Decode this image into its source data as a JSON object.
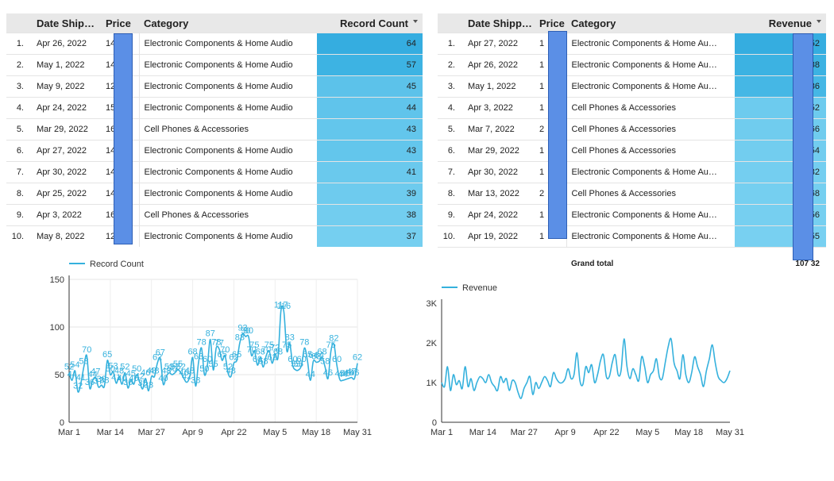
{
  "table1": {
    "headers": {
      "date": "Date Ship…",
      "price": "Price",
      "category": "Category",
      "metric": "Record Count"
    },
    "rows": [
      {
        "idx": "1.",
        "date": "Apr 26, 2022",
        "price": "14",
        "category": "Electronic Components & Home Audio",
        "value": "64"
      },
      {
        "idx": "2.",
        "date": "May 1, 2022",
        "price": "14",
        "category": "Electronic Components & Home Audio",
        "value": "57"
      },
      {
        "idx": "3.",
        "date": "May 9, 2022",
        "price": "12",
        "category": "Electronic Components & Home Audio",
        "value": "45"
      },
      {
        "idx": "4.",
        "date": "Apr 24, 2022",
        "price": "15",
        "category": "Electronic Components & Home Audio",
        "value": "44"
      },
      {
        "idx": "5.",
        "date": "Mar 29, 2022",
        "price": "16",
        "category": "Cell Phones & Accessories",
        "value": "43"
      },
      {
        "idx": "6.",
        "date": "Apr 27, 2022",
        "price": "14",
        "category": "Electronic Components & Home Audio",
        "value": "43"
      },
      {
        "idx": "7.",
        "date": "Apr 30, 2022",
        "price": "14",
        "category": "Electronic Components & Home Audio",
        "value": "41"
      },
      {
        "idx": "8.",
        "date": "Apr 25, 2022",
        "price": "14",
        "category": "Electronic Components & Home Audio",
        "value": "39"
      },
      {
        "idx": "9.",
        "date": "Apr 3, 2022",
        "price": "16",
        "category": "Cell Phones & Accessories",
        "value": "38"
      },
      {
        "idx": "10.",
        "date": "May 8, 2022",
        "price": "12",
        "category": "Electronic Components & Home Audio",
        "value": "37"
      }
    ],
    "bar_colors": [
      "#35ade0",
      "#3db3e3",
      "#5cc2ea",
      "#60c4eb",
      "#63c6ec",
      "#63c6ec",
      "#6ac9ed",
      "#6ecbee",
      "#72cdef",
      "#75cff0"
    ]
  },
  "table2": {
    "headers": {
      "date": "Date Shipp…",
      "price": "Price",
      "category": "Category",
      "metric": "Revenue"
    },
    "rows": [
      {
        "idx": "1.",
        "date": "Apr 27, 2022",
        "price": "1",
        "category": "Electronic Components & Home Au…",
        "value": "1 52"
      },
      {
        "idx": "2.",
        "date": "Apr 26, 2022",
        "price": "1",
        "category": "Electronic Components & Home Au…",
        "value": "1 38"
      },
      {
        "idx": "3.",
        "date": "May 1, 2022",
        "price": "1",
        "category": "Electronic Components & Home Au…",
        "value": "36"
      },
      {
        "idx": "4.",
        "date": "Apr 3, 2022",
        "price": "1",
        "category": "Cell Phones & Accessories",
        "value": "52"
      },
      {
        "idx": "5.",
        "date": "Mar 7, 2022",
        "price": "2",
        "category": "Cell Phones & Accessories",
        "value": "66"
      },
      {
        "idx": "6.",
        "date": "Mar 29, 2022",
        "price": "1",
        "category": "Cell Phones & Accessories",
        "value": "54"
      },
      {
        "idx": "7.",
        "date": "Apr 30, 2022",
        "price": "1",
        "category": "Electronic Components & Home Au…",
        "value": "32"
      },
      {
        "idx": "8.",
        "date": "Mar 13, 2022",
        "price": "2",
        "category": "Cell Phones & Accessories",
        "value": "68"
      },
      {
        "idx": "9.",
        "date": "Apr 24, 2022",
        "price": "1",
        "category": "Electronic Components & Home Au…",
        "value": "56"
      },
      {
        "idx": "10.",
        "date": "Apr 19, 2022",
        "price": "1",
        "category": "Electronic Components & Home Au…",
        "value": "55"
      }
    ],
    "bar_colors": [
      "#35ade0",
      "#3cb2e2",
      "#45b7e5",
      "#6dcbee",
      "#70ccee",
      "#72cdef",
      "#74cef0",
      "#75cff0",
      "#76cff0",
      "#78d0f1"
    ],
    "grand_total_label": "Grand total",
    "grand_total_value": "107 32"
  },
  "mask_color": "#5b8fe6",
  "chart_data": [
    {
      "type": "line",
      "series": [
        {
          "name": "Record Count",
          "color": "#35b1dd"
        }
      ],
      "legend": "top-left",
      "x_ticks": [
        "Mar 1",
        "Mar 14",
        "Mar 27",
        "Apr 9",
        "Apr 22",
        "May 5",
        "May 18",
        "May 31"
      ],
      "y_ticks": [
        "0",
        "50",
        "100",
        "150"
      ],
      "ylim": [
        0,
        150
      ],
      "grid": true,
      "values": [
        52,
        44,
        54,
        32,
        41,
        58,
        70,
        36,
        44,
        47,
        37,
        39,
        38,
        65,
        50,
        53,
        41,
        48,
        40,
        52,
        36,
        45,
        40,
        50,
        42,
        35,
        46,
        33,
        48,
        48,
        62,
        67,
        40,
        48,
        52,
        50,
        52,
        55,
        52,
        46,
        42,
        48,
        68,
        38,
        63,
        78,
        50,
        60,
        87,
        55,
        78,
        77,
        65,
        70,
        52,
        48,
        62,
        65,
        83,
        93,
        90,
        90,
        70,
        75,
        60,
        68,
        58,
        70,
        75,
        62,
        72,
        68,
        117,
        116,
        75,
        83,
        60,
        55,
        55,
        60,
        78,
        65,
        44,
        64,
        63,
        64,
        68,
        58,
        46,
        75,
        82,
        60,
        45,
        44,
        45,
        46,
        47,
        46,
        62
      ],
      "point_labels_shown": true
    },
    {
      "type": "line",
      "series": [
        {
          "name": "Revenue",
          "color": "#35b1dd"
        }
      ],
      "legend": "top-left",
      "x_ticks": [
        "Mar 1",
        "Mar 14",
        "Mar 27",
        "Apr 9",
        "Apr 22",
        "May 5",
        "May 18",
        "May 31"
      ],
      "y_ticks": [
        "0",
        "1K",
        "2K",
        "3K"
      ],
      "ylim": [
        0,
        3000
      ],
      "grid": false,
      "values": [
        1000,
        900,
        1400,
        800,
        1200,
        950,
        1050,
        850,
        1400,
        900,
        1100,
        800,
        1000,
        1150,
        1100,
        1000,
        1200,
        1000,
        900,
        800,
        1150,
        1000,
        1100,
        800,
        1050,
        1000,
        750,
        600,
        850,
        1000,
        1150,
        700,
        1000,
        850,
        1000,
        1150,
        1050,
        900,
        1250,
        1100,
        1000,
        1000,
        1100,
        1350,
        1100,
        1200,
        1750,
        1050,
        950,
        1400,
        1250,
        1450,
        1000,
        1200,
        1550,
        1700,
        1150,
        1150,
        1500,
        1700,
        1200,
        1300,
        2100,
        1400,
        1100,
        1350,
        1200,
        1050,
        1650,
        1400,
        1000,
        1200,
        1300,
        1600,
        1150,
        1100,
        1500,
        1900,
        2100,
        1500,
        1300,
        1100,
        1700,
        1200,
        1000,
        1250,
        1650,
        1400,
        1200,
        900,
        1300,
        1600,
        1950,
        1500,
        1150,
        1050,
        1000,
        1100,
        1300
      ]
    }
  ]
}
